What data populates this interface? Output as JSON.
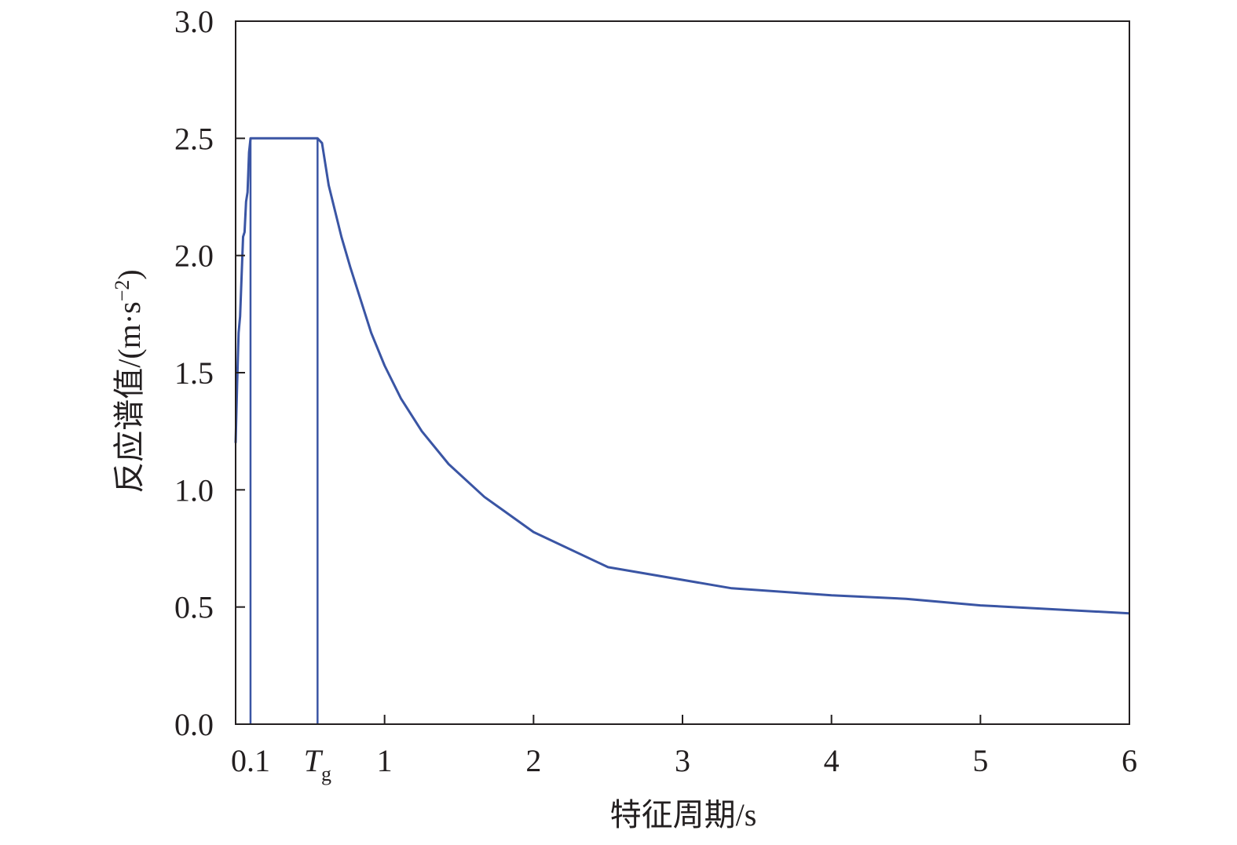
{
  "chart_data": {
    "type": "line",
    "title": "",
    "xlabel": "特征周期/s",
    "ylabel": "反应谱值/(m·s",
    "ylabel_sup": "−2",
    "ylabel_close": ")",
    "xlim": [
      0,
      6
    ],
    "ylim": [
      0,
      3
    ],
    "grid": false,
    "line_color": "#3a55a4",
    "x_ticks": [
      {
        "value": 0.1,
        "label": "0.1"
      },
      {
        "value": 0.55,
        "label": "T",
        "sub": "g"
      },
      {
        "value": 1,
        "label": "1"
      },
      {
        "value": 2,
        "label": "2"
      },
      {
        "value": 3,
        "label": "3"
      },
      {
        "value": 4,
        "label": "4"
      },
      {
        "value": 5,
        "label": "5"
      },
      {
        "value": 6,
        "label": "6"
      }
    ],
    "y_ticks": [
      {
        "value": 0,
        "label": "0.0"
      },
      {
        "value": 0.5,
        "label": "0.5"
      },
      {
        "value": 1,
        "label": "1.0"
      },
      {
        "value": 1.5,
        "label": "1.5"
      },
      {
        "value": 2,
        "label": "2.0"
      },
      {
        "value": 2.5,
        "label": "2.5"
      },
      {
        "value": 3,
        "label": "3.0"
      }
    ],
    "reference_lines": [
      {
        "x": 0.1,
        "y_from": 0,
        "y_to": 2.5
      },
      {
        "x": 0.55,
        "y_from": 0,
        "y_to": 2.5
      }
    ],
    "series": [
      {
        "x": [
          0.0,
          0.01,
          0.02,
          0.03,
          0.04,
          0.05,
          0.06,
          0.07,
          0.08,
          0.09,
          0.1,
          0.55,
          0.58,
          0.625,
          0.71,
          0.77,
          0.91,
          1.0,
          1.11,
          1.25,
          1.43,
          1.67,
          2.0,
          2.5,
          3.33,
          4.0,
          4.5,
          5.0,
          6.0
        ],
        "y": [
          1.2,
          1.45,
          1.67,
          1.74,
          1.91,
          2.08,
          2.1,
          2.23,
          2.27,
          2.44,
          2.5,
          2.5,
          2.48,
          2.3,
          2.08,
          1.95,
          1.67,
          1.53,
          1.39,
          1.25,
          1.11,
          0.97,
          0.82,
          0.67,
          0.58,
          0.55,
          0.535,
          0.507,
          0.473
        ]
      }
    ]
  }
}
